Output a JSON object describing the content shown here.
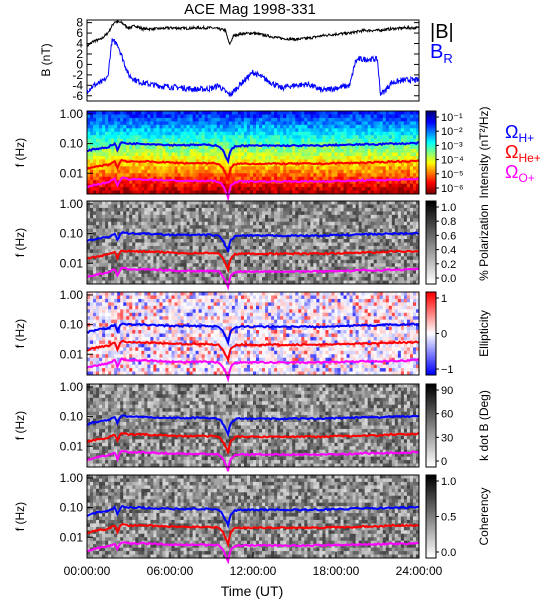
{
  "chart_data": [
    {
      "type": "line",
      "title": "ACE Mag 1998-331",
      "ylabel": "B (nT)",
      "ylim": [
        -7,
        8.5
      ],
      "yticks": [
        -6,
        -4,
        -2,
        0,
        2,
        4,
        6,
        8
      ],
      "series": [
        {
          "name": "|B|",
          "color": "#000000",
          "x": [
            0,
            0.5,
            1,
            1.5,
            2,
            2.5,
            3,
            3.5,
            4,
            5,
            6,
            7,
            8,
            9,
            9.5,
            10,
            10.3,
            10.6,
            11,
            12,
            13,
            14,
            15,
            16,
            17,
            18,
            19,
            20,
            21,
            22,
            23,
            24
          ],
          "y": [
            3.5,
            4.5,
            4.8,
            6.0,
            8.2,
            8.0,
            7.0,
            7.4,
            6.8,
            6.8,
            7.0,
            6.9,
            7.0,
            7.0,
            6.8,
            6.5,
            3.8,
            5.5,
            5.8,
            6.0,
            5.5,
            5.0,
            4.8,
            5.0,
            5.5,
            5.8,
            6.0,
            6.5,
            6.5,
            6.8,
            7.0,
            7.0
          ]
        },
        {
          "name": "B_R",
          "color": "#0000ff",
          "x": [
            0,
            0.5,
            1,
            1.5,
            1.8,
            2.2,
            2.6,
            3,
            3.5,
            4,
            5,
            6,
            7,
            8,
            9,
            9.5,
            10,
            10.3,
            10.6,
            11,
            12,
            13,
            14,
            15,
            16,
            17,
            18,
            19,
            19.4,
            19.6,
            20,
            21,
            21.2,
            21.5,
            22,
            23,
            24
          ],
          "y": [
            -5.0,
            -4.0,
            -3.5,
            -2.5,
            4.5,
            4.0,
            1.0,
            -2.0,
            -3.0,
            -3.5,
            -4.0,
            -4.3,
            -4.5,
            -4.8,
            -4.6,
            -4.0,
            -5.2,
            -5.8,
            -5.2,
            -4.0,
            -1.5,
            -3.0,
            -4.5,
            -4.0,
            -3.8,
            -5.0,
            -4.5,
            -4.0,
            0.5,
            1.0,
            1.0,
            1.0,
            -5.5,
            -5.2,
            -3.5,
            -3.0,
            -3.0
          ]
        }
      ],
      "legend": {
        "labels": [
          "|B|",
          "B_R"
        ],
        "placement": "right"
      }
    },
    {
      "type": "heatmap",
      "ylabel": "f (Hz)",
      "colorbar_label": "Intensity (nT²/Hz)",
      "colorbar_ticks": [
        "10⁻¹",
        "10⁻²",
        "10⁻³",
        "10⁻⁴",
        "10⁻⁵",
        "10⁻⁶"
      ],
      "overlays": [
        "Ω_H+",
        "Ω_He+",
        "Ω_O+"
      ]
    },
    {
      "type": "heatmap",
      "ylabel": "f (Hz)",
      "colorbar_label": "% Polarization",
      "colorbar_ticks": [
        "1.0",
        "0.8",
        "0.6",
        "0.4",
        "0.2",
        "0.0"
      ]
    },
    {
      "type": "heatmap",
      "ylabel": "f (Hz)",
      "colorbar_label": "Ellipticity",
      "colorbar_ticks": [
        "1",
        "0",
        "−1"
      ]
    },
    {
      "type": "heatmap",
      "ylabel": "f (Hz)",
      "colorbar_label": "k dot B (Deg)",
      "colorbar_ticks": [
        "90",
        "60",
        "30",
        "0"
      ]
    },
    {
      "type": "heatmap",
      "ylabel": "f (Hz)",
      "colorbar_label": "Coherency",
      "colorbar_ticks": [
        "1.0",
        "0.5",
        "0.0"
      ]
    }
  ],
  "spectral": {
    "ylim_log": [
      -2.7,
      0.1
    ],
    "yticks": [
      "1.00",
      "0.10",
      "0.01"
    ],
    "x": [
      0,
      0.5,
      1,
      1.5,
      2,
      2.2,
      2.5,
      2.8,
      3,
      3.5,
      4,
      5,
      6,
      7,
      8,
      9,
      9.5,
      9.8,
      10,
      10.2,
      10.4,
      10.7,
      11,
      12,
      13,
      14,
      15,
      16,
      17,
      18,
      19,
      20,
      21,
      22,
      23,
      24
    ],
    "H": [
      0.055,
      0.065,
      0.07,
      0.075,
      0.1,
      0.06,
      0.11,
      0.105,
      0.1,
      0.1,
      0.1,
      0.095,
      0.09,
      0.09,
      0.09,
      0.09,
      0.085,
      0.06,
      0.04,
      0.025,
      0.06,
      0.08,
      0.085,
      0.085,
      0.085,
      0.085,
      0.085,
      0.085,
      0.085,
      0.09,
      0.09,
      0.095,
      0.095,
      0.1,
      0.1,
      0.105
    ],
    "He": [
      0.014,
      0.016,
      0.018,
      0.019,
      0.025,
      0.015,
      0.028,
      0.026,
      0.025,
      0.025,
      0.025,
      0.024,
      0.023,
      0.022,
      0.022,
      0.022,
      0.021,
      0.015,
      0.01,
      0.006,
      0.015,
      0.02,
      0.021,
      0.021,
      0.021,
      0.021,
      0.021,
      0.021,
      0.021,
      0.022,
      0.022,
      0.023,
      0.023,
      0.025,
      0.025,
      0.026
    ],
    "O": [
      0.0035,
      0.004,
      0.0045,
      0.0048,
      0.0062,
      0.0038,
      0.007,
      0.0066,
      0.0062,
      0.0062,
      0.0062,
      0.006,
      0.0057,
      0.0055,
      0.0055,
      0.0055,
      0.0053,
      0.0038,
      0.0025,
      0.0015,
      0.0038,
      0.005,
      0.0053,
      0.0053,
      0.0053,
      0.0053,
      0.0053,
      0.0053,
      0.0053,
      0.0055,
      0.0055,
      0.0058,
      0.0058,
      0.006,
      0.006,
      0.0065
    ],
    "colors": {
      "H": "#0000ff",
      "He": "#ff0000",
      "O": "#ff00ff"
    }
  },
  "x_axis": {
    "xlabel": "Time (UT)",
    "xlim": [
      0,
      24
    ],
    "tick_labels": [
      "00:00:00",
      "06:00:00",
      "12:00:00",
      "18:00:00",
      "24:00:00"
    ],
    "tick_values": [
      0,
      6,
      12,
      18,
      24
    ]
  },
  "legend_labels": {
    "absB": "|B|",
    "BR_main": "B",
    "BR_sub": "R",
    "omega": "Ω",
    "Hp": "H+",
    "Hep": "He+",
    "Op": "O+"
  }
}
